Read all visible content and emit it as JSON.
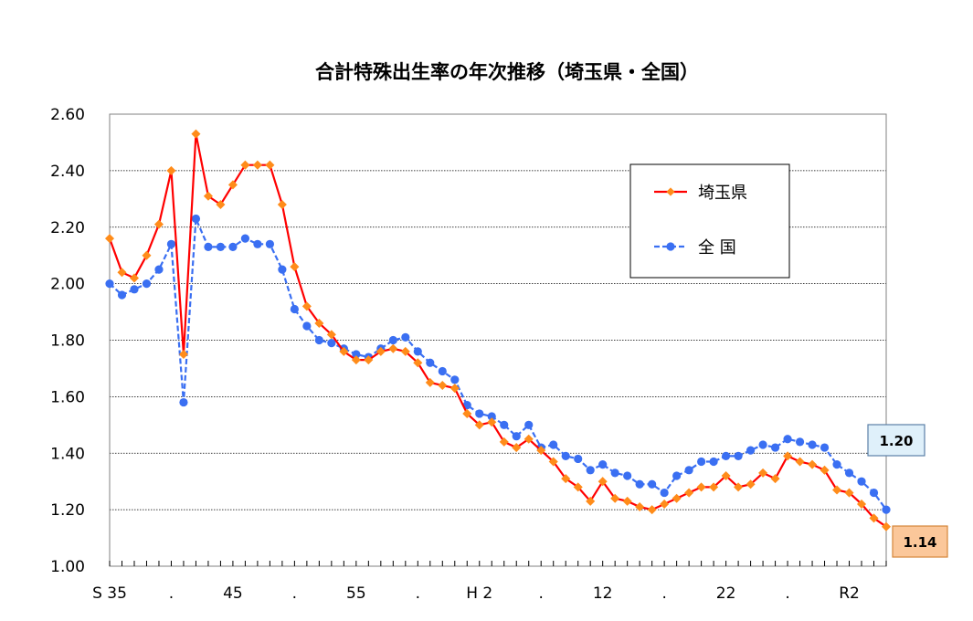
{
  "chart_data": {
    "type": "line",
    "title": "合計特殊出生率の年次推移（埼玉県・全国）",
    "xlabel": "",
    "ylabel": "",
    "ylim": [
      1.0,
      2.6
    ],
    "yticks": [
      "1.00",
      "1.20",
      "1.40",
      "1.60",
      "1.80",
      "2.00",
      "2.20",
      "2.40",
      "2.60"
    ],
    "xtick_labels": [
      {
        "index": 0,
        "label": "S 35"
      },
      {
        "index": 5,
        "label": "."
      },
      {
        "index": 10,
        "label": "45"
      },
      {
        "index": 15,
        "label": "."
      },
      {
        "index": 20,
        "label": "55"
      },
      {
        "index": 25,
        "label": "."
      },
      {
        "index": 30,
        "label": "H 2"
      },
      {
        "index": 35,
        "label": "."
      },
      {
        "index": 40,
        "label": "12"
      },
      {
        "index": 45,
        "label": "."
      },
      {
        "index": 50,
        "label": "22"
      },
      {
        "index": 55,
        "label": "."
      },
      {
        "index": 60,
        "label": "R2"
      }
    ],
    "grid": true,
    "legend_position": "top-right",
    "series": [
      {
        "name": "埼玉県",
        "color": "#ff0000",
        "marker_color": "#ff8c1a",
        "marker": "diamond",
        "line_style": "solid",
        "end_label": "1.14",
        "values": [
          2.16,
          2.04,
          2.02,
          2.1,
          2.21,
          2.4,
          1.75,
          2.53,
          2.31,
          2.28,
          2.35,
          2.42,
          2.42,
          2.42,
          2.28,
          2.06,
          1.92,
          1.86,
          1.82,
          1.76,
          1.73,
          1.73,
          1.76,
          1.77,
          1.76,
          1.72,
          1.65,
          1.64,
          1.63,
          1.54,
          1.5,
          1.51,
          1.44,
          1.42,
          1.45,
          1.41,
          1.37,
          1.31,
          1.28,
          1.23,
          1.3,
          1.24,
          1.23,
          1.21,
          1.2,
          1.22,
          1.24,
          1.26,
          1.28,
          1.28,
          1.32,
          1.28,
          1.29,
          1.33,
          1.31,
          1.39,
          1.37,
          1.36,
          1.34,
          1.27,
          1.26,
          1.22,
          1.17,
          1.14
        ]
      },
      {
        "name": "全 国",
        "color": "#3a6ff2",
        "marker_color": "#3a6ff2",
        "marker": "circle",
        "line_style": "dashed",
        "end_label": "1.20",
        "values": [
          2.0,
          1.96,
          1.98,
          2.0,
          2.05,
          2.14,
          1.58,
          2.23,
          2.13,
          2.13,
          2.13,
          2.16,
          2.14,
          2.14,
          2.05,
          1.91,
          1.85,
          1.8,
          1.79,
          1.77,
          1.75,
          1.74,
          1.77,
          1.8,
          1.81,
          1.76,
          1.72,
          1.69,
          1.66,
          1.57,
          1.54,
          1.53,
          1.5,
          1.46,
          1.5,
          1.42,
          1.43,
          1.39,
          1.38,
          1.34,
          1.36,
          1.33,
          1.32,
          1.29,
          1.29,
          1.26,
          1.32,
          1.34,
          1.37,
          1.37,
          1.39,
          1.39,
          1.41,
          1.43,
          1.42,
          1.45,
          1.44,
          1.43,
          1.42,
          1.36,
          1.33,
          1.3,
          1.26,
          1.2
        ]
      }
    ]
  }
}
